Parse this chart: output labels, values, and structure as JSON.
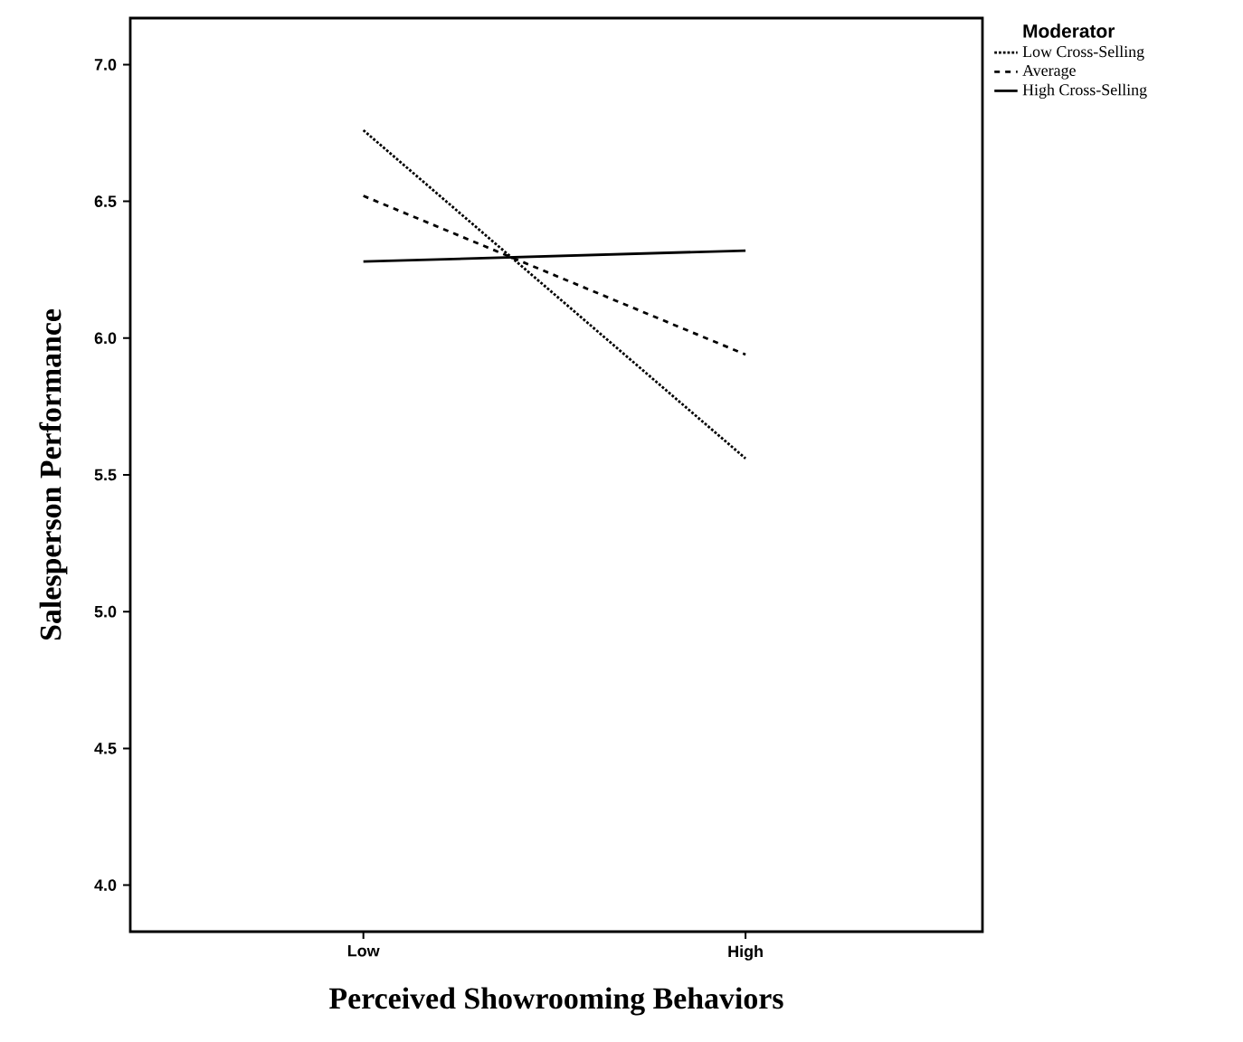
{
  "chart_data": {
    "type": "line",
    "xlabel": "Perceived Showrooming Behaviors",
    "ylabel": "Salesperson Performance",
    "legend_title": "Moderator",
    "legend": "top right",
    "categories": [
      "Low",
      "High"
    ],
    "series": [
      {
        "name": "Low Cross-Selling",
        "color": "#000000",
        "line_style": "dotted",
        "values": [
          6.76,
          5.56
        ]
      },
      {
        "name": "Average",
        "color": "#000000",
        "line_style": "dashed",
        "values": [
          6.52,
          5.94
        ]
      },
      {
        "name": "High Cross-Selling",
        "color": "#000000",
        "line_style": "solid",
        "values": [
          6.28,
          6.32
        ]
      }
    ],
    "ylim": [
      3.83,
      7.17
    ],
    "yticks": [
      {
        "value": 4,
        "label": "4.0"
      },
      4.5,
      {
        "value": 5,
        "label": "5.0"
      },
      5.5,
      {
        "value": 6,
        "label": "6.0"
      },
      6.5,
      {
        "value": 7,
        "label": "7.0"
      }
    ],
    "grid": false
  }
}
